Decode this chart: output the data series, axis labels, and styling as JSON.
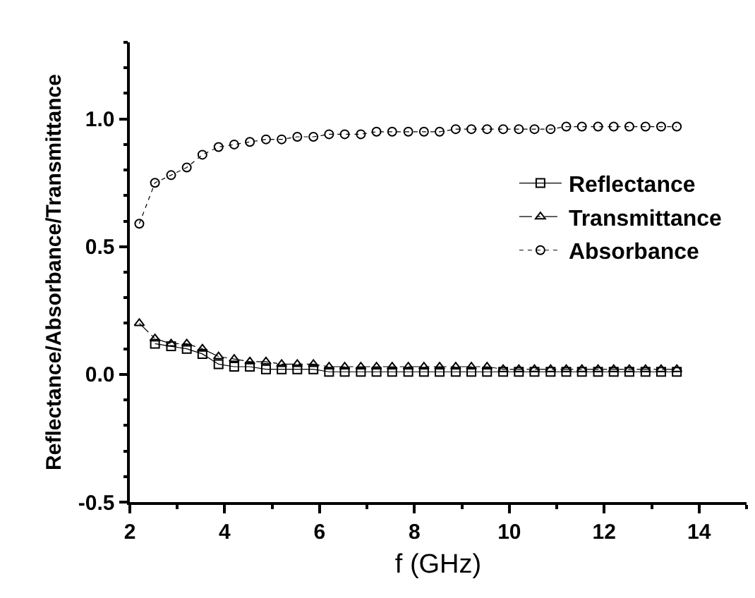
{
  "chart_data": {
    "type": "line",
    "xlabel": "f (GHz)",
    "ylabel": "Reflectance/Absorbance/Transmittance",
    "x": [
      2.2,
      2.53,
      2.87,
      3.2,
      3.53,
      3.87,
      4.2,
      4.53,
      4.87,
      5.2,
      5.53,
      5.87,
      6.2,
      6.53,
      6.87,
      7.2,
      7.53,
      7.87,
      8.2,
      8.53,
      8.87,
      9.2,
      9.53,
      9.87,
      10.2,
      10.53,
      10.87,
      11.2,
      11.53,
      11.87,
      12.2,
      12.53,
      12.87,
      13.2,
      13.53
    ],
    "series": [
      {
        "name": "Reflectance",
        "color": "#000000",
        "line_style": "solid",
        "marker": "square",
        "values": [
          null,
          0.12,
          0.11,
          0.1,
          0.08,
          0.04,
          0.03,
          0.03,
          0.02,
          0.02,
          0.02,
          0.02,
          0.01,
          0.01,
          0.01,
          0.01,
          0.01,
          0.01,
          0.01,
          0.01,
          0.01,
          0.01,
          0.01,
          0.01,
          0.01,
          0.01,
          0.01,
          0.01,
          0.01,
          0.01,
          0.01,
          0.01,
          0.01,
          0.01,
          0.01
        ]
      },
      {
        "name": "Transmittance",
        "color": "#000000",
        "line_style": "dashed",
        "marker": "triangle",
        "values": [
          0.2,
          0.14,
          0.12,
          0.12,
          0.1,
          0.07,
          0.06,
          0.05,
          0.05,
          0.04,
          0.04,
          0.04,
          0.03,
          0.03,
          0.03,
          0.03,
          0.03,
          0.03,
          0.03,
          0.03,
          0.03,
          0.03,
          0.03,
          0.02,
          0.02,
          0.02,
          0.02,
          0.02,
          0.02,
          0.02,
          0.02,
          0.02,
          0.02,
          0.02,
          0.02
        ]
      },
      {
        "name": "Absorbance",
        "color": "#000000",
        "line_style": "dotted",
        "marker": "circle",
        "values": [
          0.59,
          0.75,
          0.78,
          0.81,
          0.86,
          0.89,
          0.9,
          0.91,
          0.92,
          0.92,
          0.93,
          0.93,
          0.94,
          0.94,
          0.94,
          0.95,
          0.95,
          0.95,
          0.95,
          0.95,
          0.96,
          0.96,
          0.96,
          0.96,
          0.96,
          0.96,
          0.96,
          0.97,
          0.97,
          0.97,
          0.97,
          0.97,
          0.97,
          0.97,
          0.97
        ]
      }
    ],
    "xlim": [
      2,
      15
    ],
    "xticks": [
      2,
      4,
      6,
      8,
      10,
      12,
      14
    ],
    "ylim": [
      -0.5,
      1.3
    ],
    "yticks": [
      {
        "value": -0.5,
        "label": "-0.5"
      },
      {
        "value": 0,
        "label": "0.0"
      },
      {
        "value": 0.5,
        "label": "0.5"
      },
      {
        "value": 1,
        "label": "1.0"
      }
    ],
    "grid": false,
    "legend": "right"
  }
}
